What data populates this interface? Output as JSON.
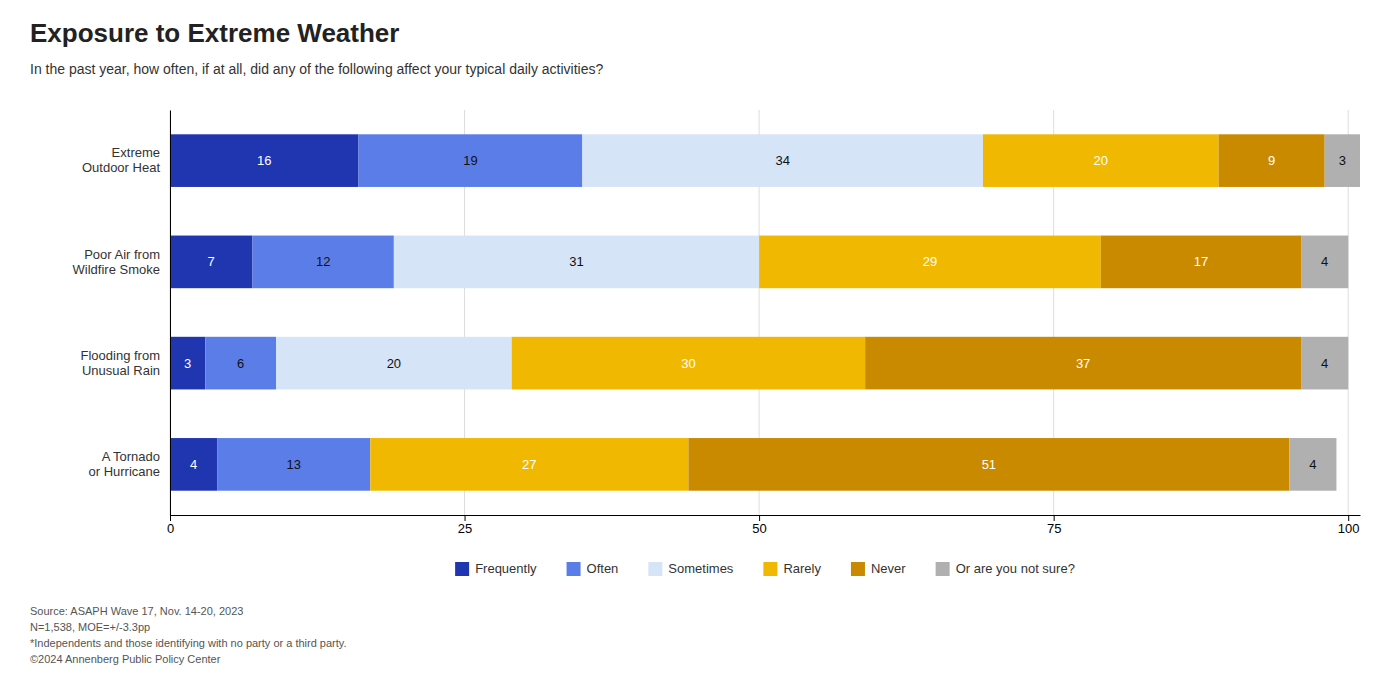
{
  "chart_data": {
    "type": "bar",
    "orientation": "horizontal",
    "stacked": true,
    "title": "Exposure to Extreme Weather",
    "subtitle": "In the past year, how often, if at all, did any of the following affect your typical daily activities?",
    "categories": [
      "Extreme\nOutdoor Heat",
      "Poor Air from\nWildfire Smoke",
      "Flooding from\nUnusual Rain",
      "A Tornado\nor Hurricane"
    ],
    "series": [
      {
        "name": "Frequently",
        "color": "#2035b0",
        "values": [
          16,
          7,
          3,
          4
        ]
      },
      {
        "name": "Often",
        "color": "#5b7de8",
        "values": [
          19,
          12,
          6,
          13
        ]
      },
      {
        "name": "Sometimes",
        "color": "#d6e4f7",
        "values": [
          34,
          31,
          20,
          0
        ]
      },
      {
        "name": "Rarely",
        "color": "#f0b800",
        "values": [
          20,
          29,
          30,
          27
        ]
      },
      {
        "name": "Never",
        "color": "#c98a00",
        "values": [
          9,
          17,
          37,
          51
        ]
      },
      {
        "name": "Or are you not sure?",
        "color": "#b0b0b0",
        "values": [
          3,
          4,
          4,
          4
        ]
      }
    ],
    "xlim": [
      0,
      101
    ],
    "xticks": [
      0,
      25,
      50,
      75,
      100
    ],
    "grid": true,
    "data_labels": true,
    "legend": "bottom",
    "footnote": "Source: ASAPH Wave 17, Nov. 14-20, 2023\nN=1,538, MOE=+/-3.3pp\n*Independents and those identifying with no party or a third party.\n©2024 Annenberg Public Policy Center"
  }
}
